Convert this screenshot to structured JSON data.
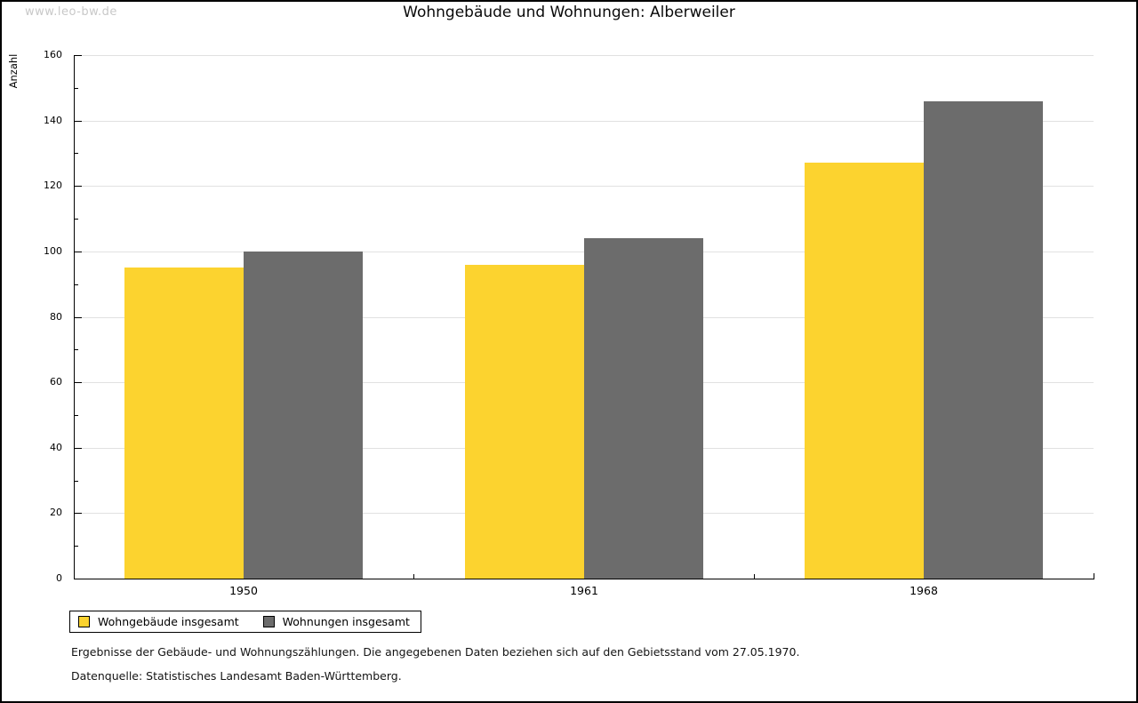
{
  "watermark": "www.leo-bw.de",
  "header": {
    "title": "Wohngebäude und Wohnungen: Alberweiler"
  },
  "footer": {
    "line1": "Ergebnisse der Gebäude- und Wohnungszählungen. Die angegebenen Daten beziehen sich auf den Gebietsstand vom 27.05.1970.",
    "line2": "Datenquelle: Statistisches Landesamt Baden-Württemberg."
  },
  "chart_data": {
    "type": "bar",
    "title": "Wohngebäude und Wohnungen: Alberweiler",
    "xlabel": "",
    "ylabel": "Anzahl",
    "categories": [
      "1950",
      "1961",
      "1968"
    ],
    "series": [
      {
        "name": "Wohngebäude insgesamt",
        "color": "#FCD32F",
        "values": [
          95,
          96,
          127
        ]
      },
      {
        "name": "Wohnungen insgesamt",
        "color": "#6C6C6C",
        "values": [
          100,
          104,
          146
        ]
      }
    ],
    "ylim": [
      0,
      160
    ],
    "ytick_step": 20,
    "yminor_step": 10,
    "grid": true,
    "legend_position": "bottom-left",
    "colors": {
      "grid": "#E1E1E1",
      "axis": "#000000"
    }
  }
}
